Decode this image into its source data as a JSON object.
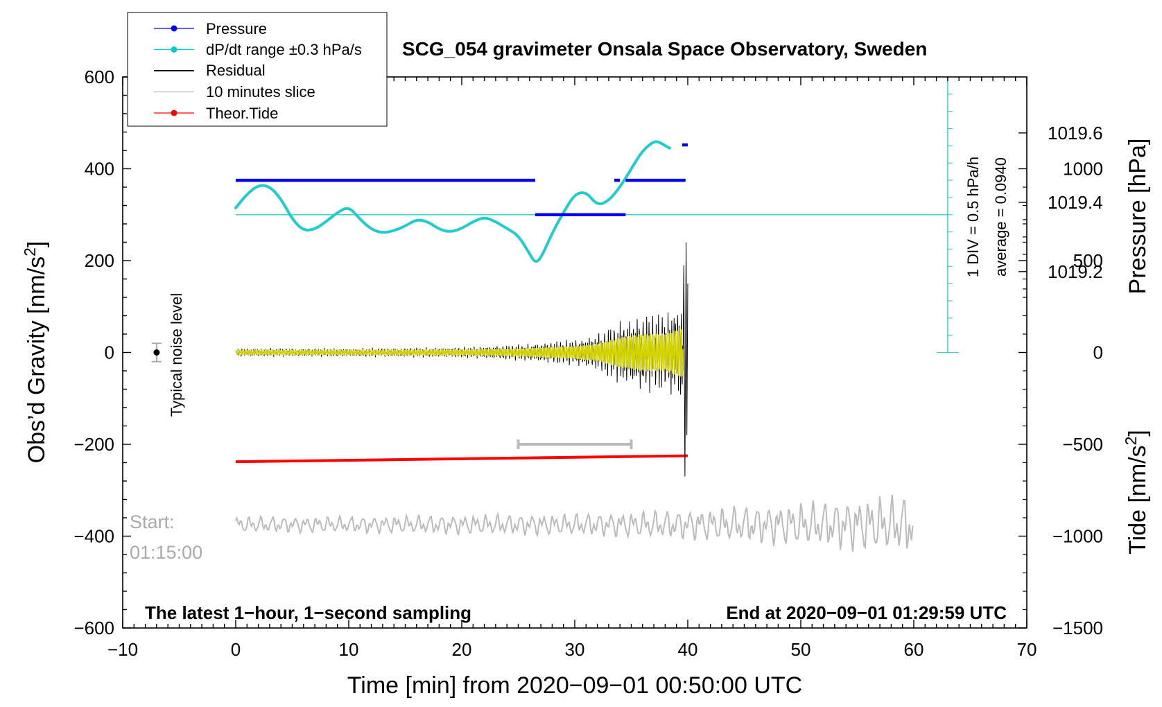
{
  "chart_data": {
    "type": "line",
    "title": "SCG_054 gravimeter Onsala Space Observatory, Sweden",
    "xlabel": "Time [min] from 2020−09−01 00:50:00 UTC",
    "ylabel": "Obs’d Gravity [nm/s²]",
    "ylabel_right_pressure": "Pressure [hPa]",
    "ylabel_right_tide": "Tide [nm/s²]",
    "xlim": [
      -10,
      70
    ],
    "ylim": [
      -600,
      600
    ],
    "x_ticks": [
      -10,
      0,
      10,
      20,
      30,
      40,
      50,
      60,
      70
    ],
    "x_tick_labels": [
      "−10",
      "0",
      "10",
      "20",
      "30",
      "40",
      "50",
      "60",
      "70"
    ],
    "y_ticks": [
      -600,
      -400,
      -200,
      0,
      200,
      400,
      600
    ],
    "y_tick_labels": [
      "−600",
      "−400",
      "−200",
      "0",
      "200",
      "400",
      "600"
    ],
    "pressure_ticks": [
      1019.2,
      1019.4,
      1019.6
    ],
    "pressure_tick_labels": [
      "1019.2",
      "1019.4",
      "1019.6"
    ],
    "pressure_gravity_equiv": [
      176,
      327,
      478
    ],
    "tide_ticks": [
      -1500,
      -1000,
      -500,
      0,
      500,
      1000
    ],
    "tide_tick_labels": [
      "−1500",
      "−1000",
      "−500",
      "0",
      "500",
      "1000"
    ],
    "tide_ylim": [
      -1500,
      1500
    ],
    "legend": {
      "position": "top-left",
      "entries": [
        {
          "label": "Pressure",
          "color": "#0000ff",
          "marker": true
        },
        {
          "label": "dP/dt range ±0.3 hPa/s",
          "color": "#00cccc",
          "marker": true
        },
        {
          "label": "Residual",
          "color": "#000000",
          "marker": false
        },
        {
          "label": "10 minutes slice",
          "color": "#bbbbbb",
          "marker": false
        },
        {
          "label": "Theor.Tide",
          "color": "#ff0000",
          "marker": true
        }
      ]
    },
    "series": [
      {
        "name": "Pressure",
        "color": "#0000ff",
        "segments": [
          [
            [
              0,
              375
            ],
            [
              26.5,
              375
            ]
          ],
          [
            [
              26.5,
              300
            ],
            [
              34.5,
              300
            ]
          ],
          [
            [
              33.5,
              375
            ],
            [
              34.0,
              375
            ]
          ],
          [
            [
              34.5,
              375
            ],
            [
              39.8,
              375
            ]
          ],
          [
            [
              39.5,
              452
            ],
            [
              40.0,
              452
            ]
          ]
        ]
      },
      {
        "name": "dP/dt",
        "color": "#22cccc",
        "x": [
          0,
          1,
          2,
          3,
          4,
          5,
          6,
          7,
          8,
          9,
          10,
          11,
          12,
          13,
          14,
          15,
          16,
          17,
          18,
          19,
          20,
          21,
          22,
          23,
          24,
          25,
          26,
          26.5,
          27,
          28,
          29,
          30,
          31,
          32,
          33,
          34,
          35,
          36,
          37,
          37.5,
          38,
          38.4
        ],
        "values": [
          315,
          345,
          365,
          362,
          335,
          290,
          265,
          268,
          285,
          305,
          318,
          290,
          268,
          260,
          265,
          275,
          290,
          285,
          268,
          262,
          270,
          285,
          295,
          285,
          270,
          255,
          215,
          195,
          205,
          260,
          305,
          345,
          350,
          320,
          330,
          360,
          400,
          440,
          460,
          458,
          450,
          445
        ]
      },
      {
        "name": "dP/dt average line",
        "color": "#44cccc",
        "value": 300,
        "x_range": [
          0,
          63
        ]
      },
      {
        "name": "Residual",
        "color": "#000000",
        "x_range": [
          0,
          40
        ],
        "envelope": [
          [
            0,
            8
          ],
          [
            10,
            8
          ],
          [
            20,
            10
          ],
          [
            25,
            15
          ],
          [
            30,
            25
          ],
          [
            32,
            35
          ],
          [
            34,
            60
          ],
          [
            36,
            75
          ],
          [
            38,
            75
          ],
          [
            39.5,
            100
          ],
          [
            40,
            250
          ]
        ]
      },
      {
        "name": "10 minutes slice",
        "color": "#bbbbbb",
        "x_range": [
          0,
          60
        ],
        "baseline": -375,
        "envelope": [
          [
            0,
            15
          ],
          [
            10,
            15
          ],
          [
            20,
            18
          ],
          [
            30,
            20
          ],
          [
            40,
            28
          ],
          [
            50,
            40
          ],
          [
            60,
            55
          ]
        ]
      },
      {
        "name": "Theor.Tide",
        "color": "#ff0000",
        "x": [
          0,
          40
        ],
        "values": [
          -238,
          -225
        ]
      }
    ],
    "noise_level_marker": {
      "label": "Typical noise level",
      "x": -7,
      "y": 0,
      "error": 20
    },
    "dpdt_scale": {
      "label_1": "1 DIV = 0.5 hPa/h",
      "label_2": "average = 0.0940",
      "x": 63,
      "y_top": 600,
      "y_bottom": 0
    },
    "slice_bar": {
      "x_start": 25,
      "x_end": 35,
      "y": -200
    },
    "start_label": [
      "Start:",
      "01:15:00"
    ],
    "footer_left": "The latest 1−hour, 1−second sampling",
    "footer_right": "End at 2020−09−01 01:29:59 UTC"
  }
}
